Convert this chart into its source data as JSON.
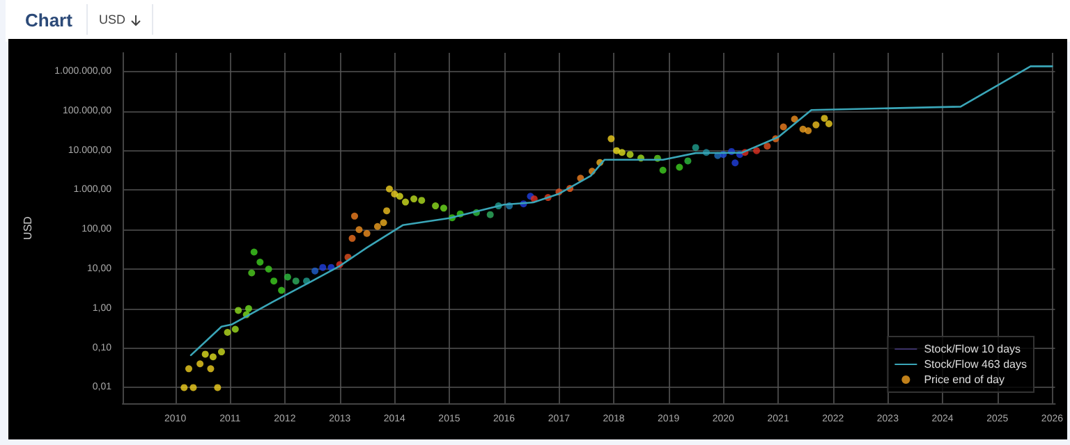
{
  "chart_data": {
    "type": "scatter",
    "title": "Chart",
    "subtitle": "USD",
    "ylabel": "USD",
    "log": "y",
    "grid": true,
    "legend": "bottom right",
    "marker": "circle",
    "xlim": [
      "2009-01-15",
      "2026-01-20"
    ],
    "xticks": [
      "2010",
      "2011",
      "2012",
      "2013",
      "2014",
      "2015",
      "2016",
      "2017",
      "2018",
      "2019",
      "2020",
      "2021",
      "2022",
      "2023",
      "2024",
      "2025",
      "2026"
    ],
    "ylim": [
      0.004,
      3000000
    ],
    "yticks": [
      {
        "value": 0.01,
        "label": "0,01"
      },
      {
        "value": 0.1,
        "label": "0,10"
      },
      {
        "value": 1,
        "label": "1,00"
      },
      {
        "value": 10,
        "label": "10,00"
      },
      {
        "value": 100,
        "label": "100,00"
      },
      {
        "value": 1000,
        "label": "1.000,00"
      },
      {
        "value": 10000,
        "label": "10.000,00"
      },
      {
        "value": 100000,
        "label": "100.000,00"
      },
      {
        "value": 1000000,
        "label": "1.000.000,00"
      }
    ],
    "series": [
      {
        "name": "Stock/Flow 10 days",
        "type": "line",
        "color": "#3a3066",
        "line_style": "solid",
        "marker": "none"
      },
      {
        "name": "Stock/Flow 463 days",
        "type": "line",
        "color": "#3aa6b8",
        "line_style": "solid",
        "marker": "none",
        "x": [
          "2010-04-15",
          "2010-11-05",
          "2011-01-15",
          "2011-10-15",
          "2012-07-01",
          "2013-01-01",
          "2013-07-01",
          "2014-02-25",
          "2015-01-01",
          "2016-01-01",
          "2016-07-15",
          "2017-01-01",
          "2017-08-01",
          "2017-11-01",
          "2018-11-25",
          "2019-07-01",
          "2020-05-01",
          "2021-01-01",
          "2021-08-10",
          "2024-05-01",
          "2025-08-10",
          "2026-01-01"
        ],
        "values": [
          0.066,
          0.35,
          0.4,
          1.5,
          5,
          12,
          35,
          130,
          195,
          430,
          490,
          810,
          2300,
          5900,
          5900,
          8700,
          8800,
          22000,
          107000,
          130000,
          1370000,
          1370000
        ]
      },
      {
        "name": "Price end of day",
        "color": "#f0a020",
        "x": [
          "2010-03-01",
          "2010-05-01",
          "2010-04-01",
          "2010-06-15",
          "2010-08-25",
          "2010-10-10",
          "2010-07-20",
          "2010-09-10",
          "2010-11-05",
          "2010-12-15",
          "2011-02-05",
          "2011-02-25",
          "2011-04-20",
          "2011-05-05",
          "2011-05-25",
          "2011-06-10",
          "2011-07-20",
          "2011-09-15",
          "2011-10-20",
          "2011-12-10",
          "2012-01-20",
          "2012-03-15",
          "2012-05-25",
          "2012-07-20",
          "2012-09-10",
          "2012-11-05",
          "2013-01-01",
          "2013-02-25",
          "2013-03-25",
          "2013-04-10",
          "2013-05-10",
          "2013-07-01",
          "2013-09-10",
          "2013-10-20",
          "2013-11-10",
          "2013-11-28",
          "2014-01-01",
          "2014-02-05",
          "2014-03-15",
          "2014-05-10",
          "2014-07-01",
          "2014-10-01",
          "2014-11-25",
          "2015-01-20",
          "2015-03-15",
          "2015-07-01",
          "2015-10-01",
          "2015-11-25",
          "2016-02-05",
          "2016-05-10",
          "2016-06-25",
          "2016-07-20",
          "2016-10-20",
          "2017-01-01",
          "2017-03-15",
          "2017-05-25",
          "2017-08-10",
          "2017-10-01",
          "2017-12-15",
          "2018-01-20",
          "2018-02-25",
          "2018-04-20",
          "2018-07-01",
          "2018-10-20",
          "2018-11-25",
          "2019-03-15",
          "2019-05-10",
          "2019-07-01",
          "2019-09-10",
          "2019-11-25",
          "2020-01-01",
          "2020-02-25",
          "2020-03-20",
          "2020-04-20",
          "2020-05-25",
          "2020-08-10",
          "2020-10-20",
          "2020-12-15",
          "2021-02-05",
          "2021-04-20",
          "2021-06-15",
          "2021-07-20",
          "2021-09-10",
          "2021-11-05",
          "2021-12-05"
        ],
        "values": [
          0.01,
          0.01,
          0.03,
          0.04,
          0.03,
          0.01,
          0.07,
          0.06,
          0.08,
          0.25,
          0.3,
          0.9,
          0.7,
          1,
          8,
          27,
          15,
          10,
          5,
          2.9,
          6.3,
          5,
          5,
          9,
          11,
          11,
          13,
          20,
          60,
          220,
          100,
          80,
          120,
          150,
          300,
          1070,
          800,
          700,
          500,
          600,
          550,
          400,
          350,
          200,
          250,
          270,
          240,
          400,
          400,
          450,
          700,
          600,
          650,
          900,
          1100,
          2000,
          3000,
          5000,
          20000,
          10000,
          9000,
          8000,
          6500,
          6400,
          3200,
          3800,
          5500,
          12000,
          9000,
          7500,
          8000,
          9500,
          4900,
          8000,
          9000,
          10000,
          13000,
          20000,
          40000,
          63000,
          35000,
          32000,
          45000,
          66000,
          48000
        ],
        "colors": [
          "#f0d020",
          "#f0d020",
          "#f0d020",
          "#f0d020",
          "#f0d020",
          "#f0d020",
          "#e0e020",
          "#e0e020",
          "#d0e020",
          "#b8e020",
          "#a0e020",
          "#90e020",
          "#80e020",
          "#70e020",
          "#50d020",
          "#40d020",
          "#40d020",
          "#40d020",
          "#40d020",
          "#40d020",
          "#30c040",
          "#30b060",
          "#20a090",
          "#2060d0",
          "#2040e0",
          "#2040e0",
          "#e03020",
          "#e05020",
          "#f07020",
          "#f08020",
          "#f09020",
          "#f09020",
          "#f0a020",
          "#f0b020",
          "#f0c020",
          "#f0d020",
          "#f0d020",
          "#e0e020",
          "#d0e020",
          "#c0e020",
          "#b0e020",
          "#90e020",
          "#70e020",
          "#40d020",
          "#40d020",
          "#30c040",
          "#30b060",
          "#20a090",
          "#2080b0",
          "#2040e0",
          "#2040e0",
          "#e03020",
          "#e04020",
          "#e05020",
          "#f06020",
          "#f08020",
          "#f09020",
          "#f0b020",
          "#f0d020",
          "#f0e020",
          "#e0e020",
          "#c0e020",
          "#a0e020",
          "#60d020",
          "#40d020",
          "#40d020",
          "#30c040",
          "#20a090",
          "#2090a0",
          "#2070c0",
          "#2050e0",
          "#2040e0",
          "#2040e0",
          "#2040e0",
          "#e03020",
          "#e03020",
          "#e05020",
          "#f07020",
          "#f08020",
          "#f09020",
          "#f0a020",
          "#f0a020",
          "#f0c020",
          "#f0d020",
          "#f0d020"
        ]
      }
    ]
  }
}
